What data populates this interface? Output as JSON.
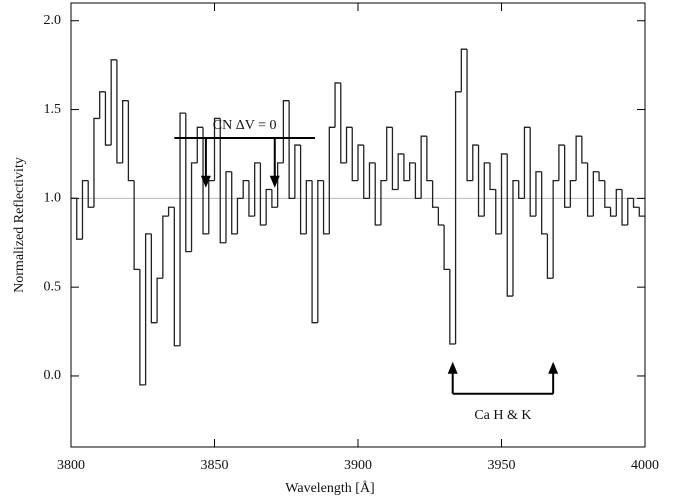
{
  "chart_data": {
    "type": "step",
    "xlabel": "Wavelength [Å]",
    "ylabel": "Normalized Reflectivity",
    "x": [
      3800,
      3802,
      3804,
      3806,
      3808,
      3810,
      3812,
      3814,
      3816,
      3818,
      3820,
      3822,
      3824,
      3826,
      3828,
      3830,
      3832,
      3834,
      3836,
      3838,
      3840,
      3842,
      3844,
      3846,
      3848,
      3850,
      3852,
      3854,
      3856,
      3858,
      3860,
      3862,
      3864,
      3866,
      3868,
      3870,
      3872,
      3874,
      3876,
      3878,
      3880,
      3882,
      3884,
      3886,
      3888,
      3890,
      3892,
      3894,
      3896,
      3898,
      3900,
      3902,
      3904,
      3906,
      3908,
      3910,
      3912,
      3914,
      3916,
      3918,
      3920,
      3922,
      3924,
      3926,
      3928,
      3930,
      3932,
      3934,
      3936,
      3938,
      3940,
      3942,
      3944,
      3946,
      3948,
      3950,
      3952,
      3954,
      3956,
      3958,
      3960,
      3962,
      3964,
      3966,
      3968,
      3970,
      3972,
      3974,
      3976,
      3978,
      3980,
      3982,
      3984,
      3986,
      3988,
      3990,
      3992,
      3994,
      3996,
      3998
    ],
    "values": [
      1.0,
      0.77,
      1.1,
      0.95,
      1.45,
      1.6,
      1.3,
      1.78,
      1.2,
      1.55,
      1.1,
      0.6,
      -0.05,
      0.8,
      0.3,
      0.55,
      0.9,
      0.95,
      0.17,
      1.48,
      0.7,
      1.2,
      1.4,
      0.8,
      1.1,
      1.45,
      0.75,
      1.15,
      0.8,
      1.0,
      1.1,
      0.9,
      1.2,
      0.85,
      1.05,
      0.95,
      1.2,
      1.55,
      1.0,
      1.3,
      0.8,
      1.1,
      0.3,
      1.1,
      0.8,
      1.4,
      1.65,
      1.2,
      1.4,
      1.1,
      1.3,
      1.0,
      1.2,
      0.85,
      1.1,
      1.4,
      1.05,
      1.25,
      1.1,
      1.2,
      1.0,
      1.35,
      1.1,
      0.95,
      0.85,
      0.6,
      0.18,
      1.6,
      1.84,
      1.1,
      1.3,
      0.9,
      1.2,
      1.05,
      0.8,
      1.25,
      0.45,
      1.1,
      1.0,
      1.4,
      0.9,
      1.15,
      0.8,
      0.55,
      1.1,
      1.3,
      0.95,
      1.1,
      1.35,
      1.2,
      0.9,
      1.15,
      1.1,
      0.95,
      0.9,
      1.05,
      0.85,
      1.0,
      0.95,
      0.9
    ],
    "color": "#222222",
    "reference_line": 1,
    "xlim": [
      3800,
      4000
    ],
    "xticks": [
      3800,
      3850,
      3900,
      3950,
      4000
    ],
    "ylim": [
      -0.4,
      2.1
    ],
    "yticks": [
      {
        "value": 0,
        "label": "0.0"
      },
      0.5,
      {
        "value": 1,
        "label": "1.0"
      },
      1.5,
      {
        "value": 2,
        "label": "2.0"
      }
    ],
    "annotations": [
      {
        "text": "CN ΔV = 0",
        "arrows_x": [
          3847,
          3871
        ],
        "span": [
          3836,
          3885
        ]
      },
      {
        "text": "Ca H & K",
        "arrows_x": [
          3933,
          3968
        ],
        "span": [
          3933,
          3968
        ]
      }
    ]
  }
}
